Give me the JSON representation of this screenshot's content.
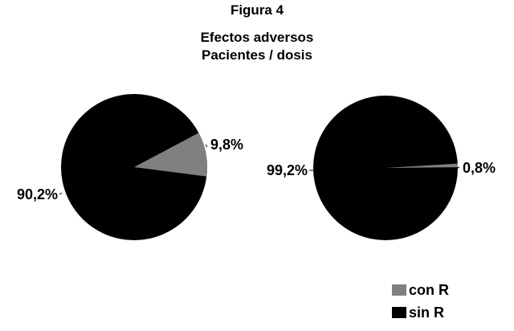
{
  "figure": {
    "label": "Figura 4",
    "title_line1": "Efectos adversos",
    "title_line2": "Pacientes / dosis"
  },
  "colors": {
    "con_R": "#808080",
    "sin_R": "#000000"
  },
  "chart_data": [
    {
      "type": "pie",
      "title": "",
      "slices": [
        {
          "name": "con R",
          "value": 9.8,
          "label": "9,8%"
        },
        {
          "name": "sin R",
          "value": 90.2,
          "label": "90,2%"
        }
      ]
    },
    {
      "type": "pie",
      "title": "",
      "slices": [
        {
          "name": "con R",
          "value": 0.8,
          "label": "0,8%"
        },
        {
          "name": "sin R",
          "value": 99.2,
          "label": "99,2%"
        }
      ]
    }
  ],
  "legend": {
    "placement": "bottom-right",
    "items": [
      {
        "label": "con R"
      },
      {
        "label": "sin R"
      }
    ]
  }
}
